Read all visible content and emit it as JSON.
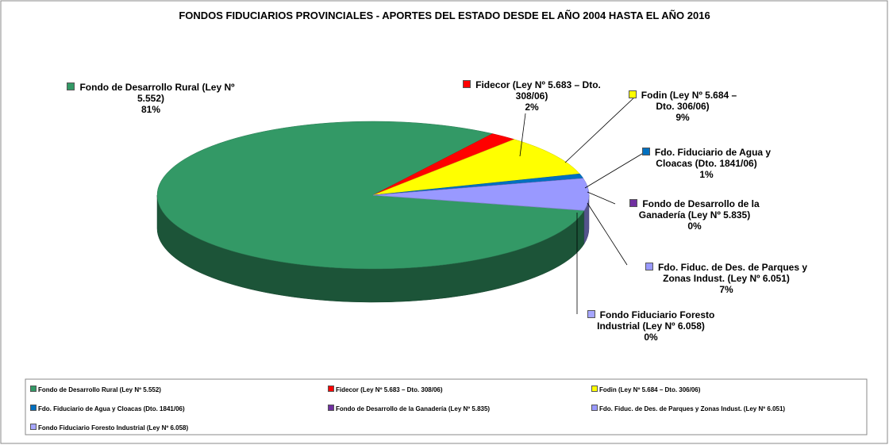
{
  "chart_data": {
    "type": "pie3d",
    "title": "FONDOS FIDUCIARIOS PROVINCIALES - APORTES DEL ESTADO DESDE EL AÑO 2004 HASTA EL AÑO 2016",
    "categories": [
      "Fondo de Desarrollo Rural (Ley Nº 5.552)",
      "Fidecor (Ley Nº 5.683 – Dto. 308/06)",
      "Fodin (Ley Nº 5.684 – Dto. 306/06)",
      "Fdo. Fiduciario de Agua y Cloacas (Dto. 1841/06)",
      "Fondo de Desarrollo de la Ganadería (Ley Nº 5.835)",
      "Fdo. Fiduc. de Des. de Parques y Zonas Indust. (Ley Nº 6.051)",
      "Fondo Fiduciario Foresto Industrial (Ley Nº 6.058)"
    ],
    "values": [
      81,
      2,
      9,
      1,
      0,
      7,
      0
    ],
    "value_labels": [
      "81%",
      "2%",
      "9%",
      "1%",
      "0%",
      "7%",
      "0%"
    ],
    "colors": [
      "#339966",
      "#ff0000",
      "#ffff00",
      "#0070c0",
      "#7030a0",
      "#9999ff",
      "#a6a6ff"
    ],
    "legend": "bottom"
  }
}
